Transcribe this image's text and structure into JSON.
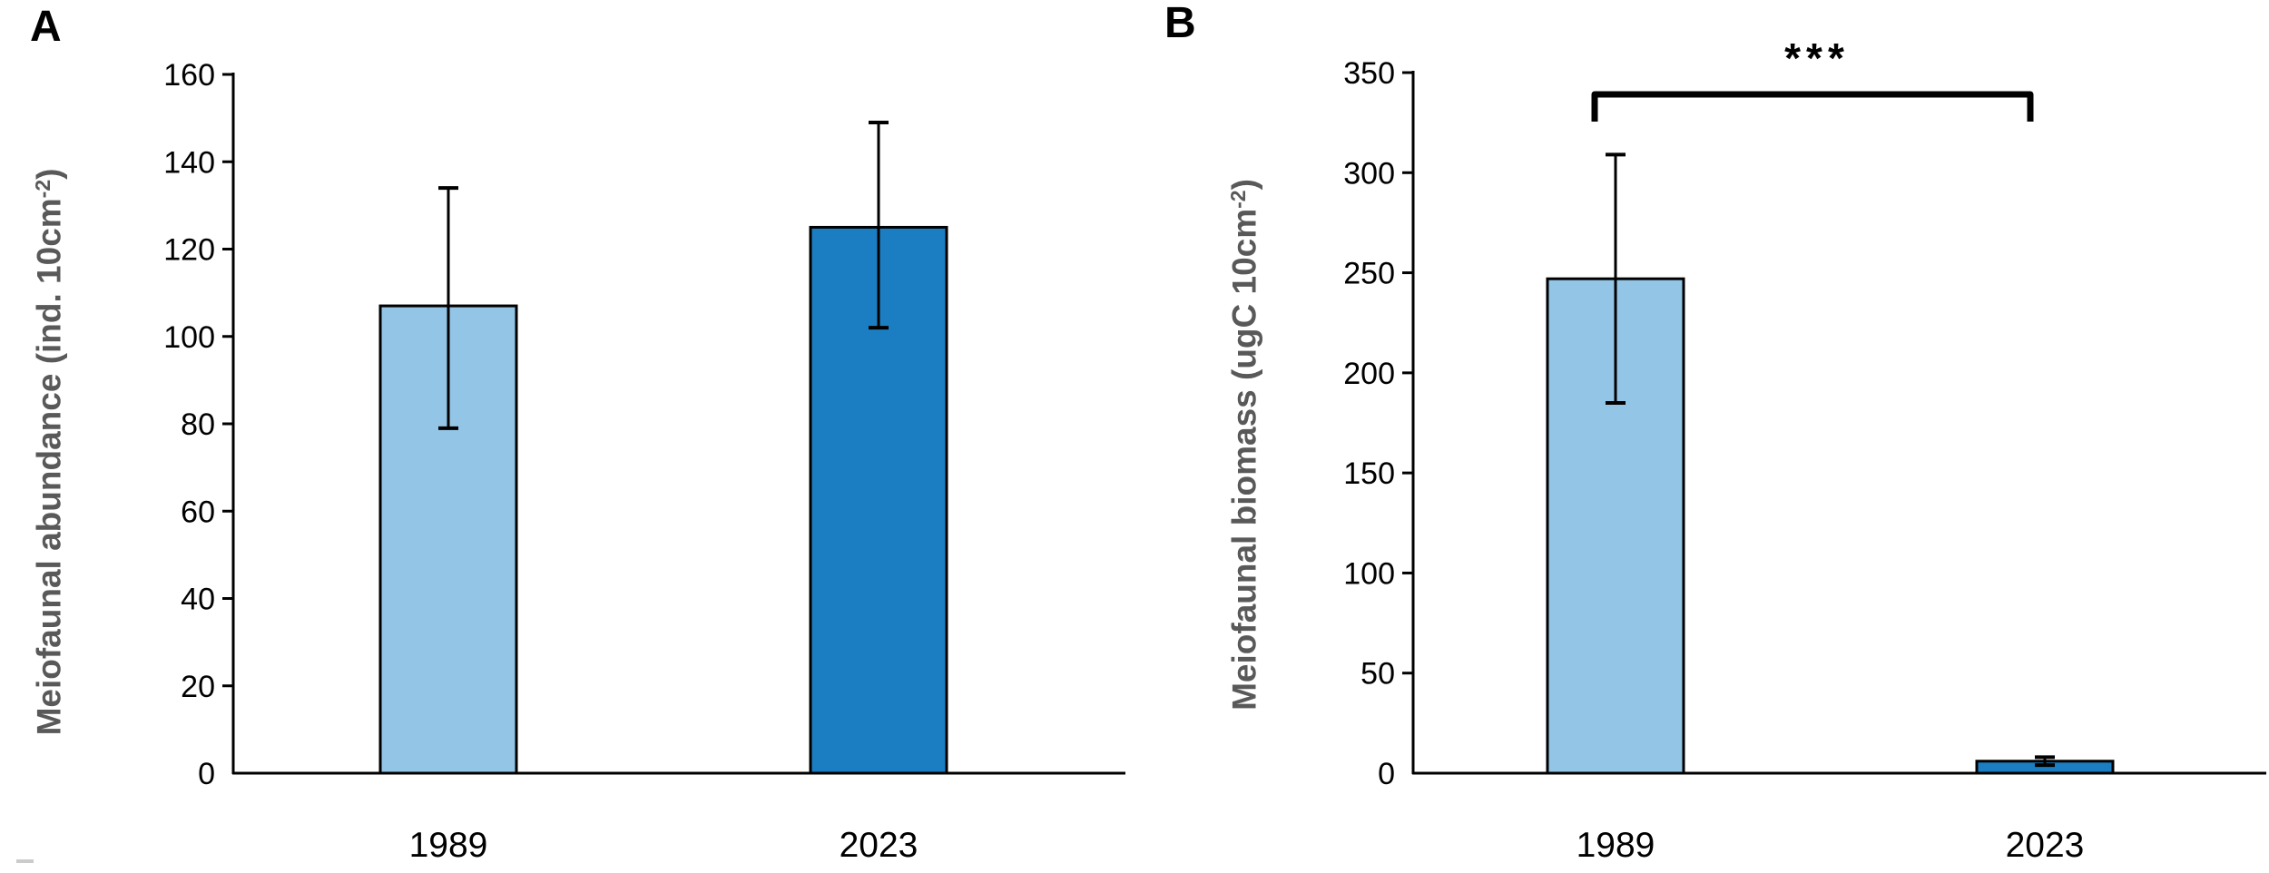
{
  "figure": {
    "background": "#ffffff",
    "text_color": "#000000",
    "axis_title_color": "#595959",
    "bar_outline_color": "#000000",
    "bar_color_1989": "#92c5e6",
    "bar_color_2023": "#1b7ec2"
  },
  "chart_data": [
    {
      "type": "bar",
      "panel_label": "A",
      "title": "",
      "xlabel": "",
      "ylabel": "Meiofaunal abundance (ind. 10cm⁻²)",
      "ylabel_parts": {
        "main": "Meiofaunal abundance (ind. 10cm",
        "sup": "-2",
        "close": ")"
      },
      "categories": [
        "1989",
        "2023"
      ],
      "values": [
        107,
        125
      ],
      "error_low": [
        79,
        102
      ],
      "error_high": [
        134,
        149
      ],
      "ylim": [
        0,
        160
      ],
      "yticks": [
        0,
        20,
        40,
        60,
        80,
        100,
        120,
        140,
        160
      ],
      "bar_colors": [
        "#92c5e6",
        "#1b7ec2"
      ],
      "grid": false,
      "legend": "none",
      "error_bars": true
    },
    {
      "type": "bar",
      "panel_label": "B",
      "title": "",
      "xlabel": "",
      "ylabel": "Meiofaunal biomass (ugC 10cm⁻²)",
      "ylabel_parts": {
        "main": "Meiofaunal biomass (ugC 10cm",
        "sup": "-2",
        "close": ")"
      },
      "categories": [
        "1989",
        "2023"
      ],
      "values": [
        247,
        6
      ],
      "error_low": [
        185,
        4
      ],
      "error_high": [
        309,
        8
      ],
      "ylim": [
        0,
        350
      ],
      "yticks": [
        0,
        50,
        100,
        150,
        200,
        250,
        300,
        350
      ],
      "bar_colors": [
        "#92c5e6",
        "#1b7ec2"
      ],
      "grid": false,
      "legend": "none",
      "error_bars": true,
      "significance": {
        "label": "***",
        "between": [
          "1989",
          "2023"
        ]
      }
    }
  ]
}
